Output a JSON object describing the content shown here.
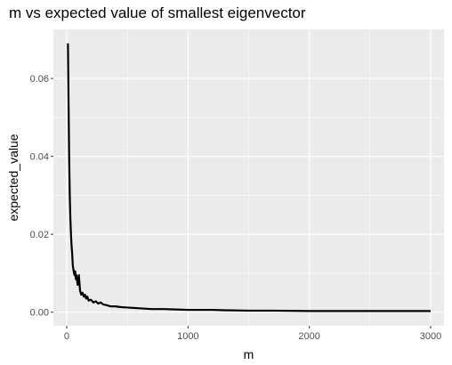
{
  "chart_data": {
    "type": "line",
    "title": "m vs expected value of smallest eigenvector",
    "xlabel": "m",
    "ylabel": "expected_value",
    "xlim": [
      -110,
      3110
    ],
    "ylim": [
      -0.0035,
      0.0726
    ],
    "xticks": [
      0,
      1000,
      2000,
      3000
    ],
    "xtick_labels": [
      "0",
      "1000",
      "2000",
      "3000"
    ],
    "yticks": [
      0.0,
      0.02,
      0.04,
      0.06
    ],
    "ytick_labels": [
      "0.00",
      "0.02",
      "0.04",
      "0.06"
    ],
    "grid": true,
    "legend": "none",
    "colors": {
      "panel": "#ebebeb",
      "grid_major": "#ffffff",
      "line": "#000000",
      "tick_text": "#4d4d4d"
    },
    "series": [
      {
        "x": [
          10,
          15,
          20,
          25,
          30,
          35,
          40,
          45,
          50,
          55,
          60,
          65,
          70,
          75,
          80,
          90,
          100,
          110,
          120,
          130,
          140,
          150,
          160,
          170,
          180,
          200,
          220,
          240,
          260,
          280,
          300,
          330,
          360,
          400,
          450,
          500,
          550,
          600,
          700,
          800,
          900,
          1000,
          1100,
          1200,
          1300,
          1500,
          1700,
          2000,
          2300,
          2600,
          3000
        ],
        "y": [
          0.069,
          0.054,
          0.04,
          0.03,
          0.024,
          0.02,
          0.017,
          0.015,
          0.012,
          0.011,
          0.01,
          0.0095,
          0.0105,
          0.0085,
          0.0095,
          0.007,
          0.0095,
          0.0055,
          0.0045,
          0.005,
          0.004,
          0.0045,
          0.0035,
          0.004,
          0.003,
          0.0032,
          0.0025,
          0.0028,
          0.0022,
          0.0025,
          0.002,
          0.0018,
          0.0015,
          0.0015,
          0.0013,
          0.0012,
          0.0011,
          0.001,
          0.0008,
          0.0008,
          0.0007,
          0.0006,
          0.0006,
          0.0006,
          0.0005,
          0.0004,
          0.0004,
          0.0003,
          0.0003,
          0.0003,
          0.0003
        ]
      }
    ]
  }
}
